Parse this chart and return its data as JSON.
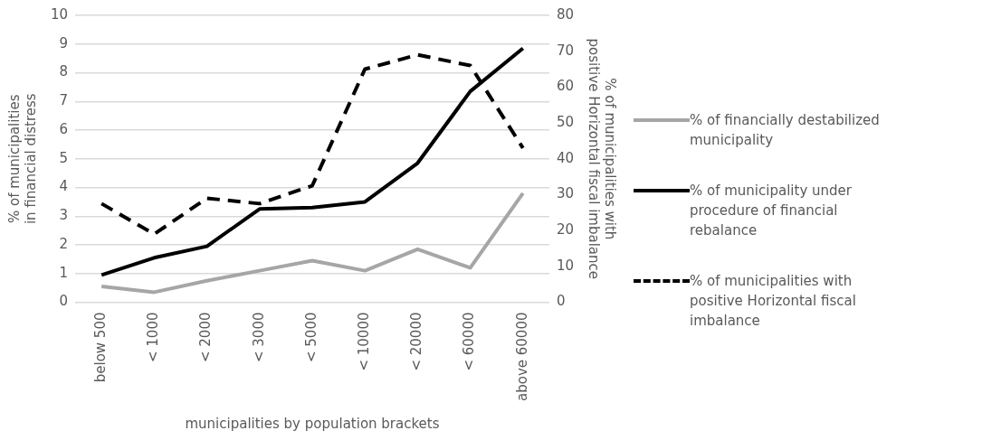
{
  "chart_data": {
    "type": "line",
    "xlabel": "municipalities by population brackets",
    "ylabel": "% of municipalities in financial distress",
    "y2label": "% of municipalities with positive Horizontal fiscal imbalance",
    "categories": [
      "below 500",
      "< 1000",
      "< 2000",
      "< 3000",
      "< 5000",
      "< 10000",
      "< 20000",
      "< 60000",
      "above 60000"
    ],
    "series": [
      {
        "name": "% of financially destabilized municipality",
        "color": "#a6a6a6",
        "values": [
          0.55,
          0.35,
          0.75,
          1.1,
          1.45,
          1.1,
          1.85,
          1.2,
          3.8
        ]
      },
      {
        "name": "% of municipality under procedure of financial rebalance",
        "color": "#000000",
        "values": [
          0.95,
          1.55,
          1.95,
          3.25,
          3.3,
          3.5,
          4.85,
          7.35,
          8.85
        ]
      },
      {
        "name": "% of municipalities with positive Horizontal fiscal imbalance",
        "color": "#000000",
        "axis": "y2",
        "line_style": "dashed",
        "values": [
          27.5,
          19,
          29,
          27.5,
          32.5,
          65,
          69,
          66,
          43
        ]
      }
    ],
    "ylim": [
      0,
      10
    ],
    "yticks": [
      0,
      1,
      2,
      3,
      4,
      5,
      6,
      7,
      8,
      9,
      10
    ],
    "y2lim": [
      0,
      80
    ],
    "y2ticks": [
      0,
      10,
      20,
      30,
      40,
      50,
      60,
      70,
      80
    ],
    "grid": "y",
    "legend": "right",
    "marker": "none"
  }
}
